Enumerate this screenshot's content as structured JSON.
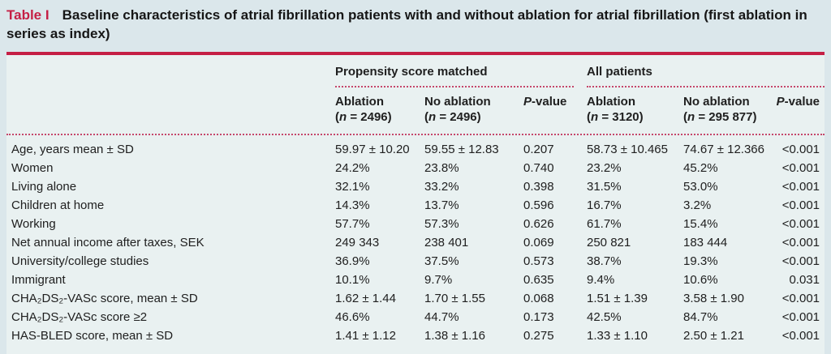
{
  "title": {
    "label": "Table I",
    "text": "Baseline characteristics of atrial fibrillation patients with and without ablation for atrial fibrillation (first ablation in series as index)"
  },
  "colors": {
    "accent_red": "#c51f45",
    "page_bg": "#dbe7eb",
    "panel_bg": "#e9f1f1"
  },
  "table": {
    "groups": {
      "psm": "Propensity score matched",
      "all": "All patients"
    },
    "subheaders": {
      "psm_ablation": {
        "label": "Ablation",
        "pre": "(",
        "var": "n",
        "post": " = 2496)"
      },
      "psm_no_ablation": {
        "label": "No ablation",
        "pre": "(",
        "var": "n",
        "post": " = 2496)"
      },
      "psm_p": {
        "var": "P",
        "post": "-value"
      },
      "all_ablation": {
        "label": "Ablation",
        "pre": "(",
        "var": "n",
        "post": " = 3120)"
      },
      "all_no_ablation": {
        "label": "No ablation",
        "pre": "(",
        "var": "n",
        "post": " = 295 877)"
      },
      "all_p": {
        "var": "P",
        "post": "-value"
      }
    },
    "rows": [
      {
        "label": "Age, years mean ± SD",
        "psm_ablation": "59.97 ± 10.20",
        "psm_no_ablation": "59.55 ± 12.83",
        "psm_p": "0.207",
        "all_ablation": "58.73 ± 10.465",
        "all_no_ablation": "74.67 ± 12.366",
        "all_p": "<0.001"
      },
      {
        "label": "Women",
        "psm_ablation": "24.2%",
        "psm_no_ablation": "23.8%",
        "psm_p": "0.740",
        "all_ablation": "23.2%",
        "all_no_ablation": "45.2%",
        "all_p": "<0.001"
      },
      {
        "label": "Living alone",
        "psm_ablation": "32.1%",
        "psm_no_ablation": "33.2%",
        "psm_p": "0.398",
        "all_ablation": "31.5%",
        "all_no_ablation": "53.0%",
        "all_p": "<0.001"
      },
      {
        "label": "Children at home",
        "psm_ablation": "14.3%",
        "psm_no_ablation": "13.7%",
        "psm_p": "0.596",
        "all_ablation": "16.7%",
        "all_no_ablation": "3.2%",
        "all_p": "<0.001"
      },
      {
        "label": "Working",
        "psm_ablation": "57.7%",
        "psm_no_ablation": "57.3%",
        "psm_p": "0.626",
        "all_ablation": "61.7%",
        "all_no_ablation": "15.4%",
        "all_p": "<0.001"
      },
      {
        "label": "Net annual income after taxes, SEK",
        "psm_ablation": "249 343",
        "psm_no_ablation": "238 401",
        "psm_p": "0.069",
        "all_ablation": "250 821",
        "all_no_ablation": "183 444",
        "all_p": "<0.001"
      },
      {
        "label": "University/college studies",
        "psm_ablation": "36.9%",
        "psm_no_ablation": "37.5%",
        "psm_p": "0.573",
        "all_ablation": "38.7%",
        "all_no_ablation": "19.3%",
        "all_p": "<0.001"
      },
      {
        "label": "Immigrant",
        "psm_ablation": "10.1%",
        "psm_no_ablation": "9.7%",
        "psm_p": "0.635",
        "all_ablation": "9.4%",
        "all_no_ablation": "10.6%",
        "all_p": "0.031"
      },
      {
        "label": "CHA₂DS₂-VASc score, mean ± SD",
        "psm_ablation": "1.62 ± 1.44",
        "psm_no_ablation": "1.70 ± 1.55",
        "psm_p": "0.068",
        "all_ablation": "1.51 ± 1.39",
        "all_no_ablation": "3.58 ± 1.90",
        "all_p": "<0.001"
      },
      {
        "label": "CHA₂DS₂-VASc score ≥2",
        "psm_ablation": "46.6%",
        "psm_no_ablation": "44.7%",
        "psm_p": "0.173",
        "all_ablation": "42.5%",
        "all_no_ablation": "84.7%",
        "all_p": "<0.001"
      },
      {
        "label": "HAS-BLED score, mean ± SD",
        "psm_ablation": "1.41 ± 1.12",
        "psm_no_ablation": "1.38 ± 1.16",
        "psm_p": "0.275",
        "all_ablation": "1.33 ± 1.10",
        "all_no_ablation": "2.50 ± 1.21",
        "all_p": "<0.001"
      }
    ]
  }
}
